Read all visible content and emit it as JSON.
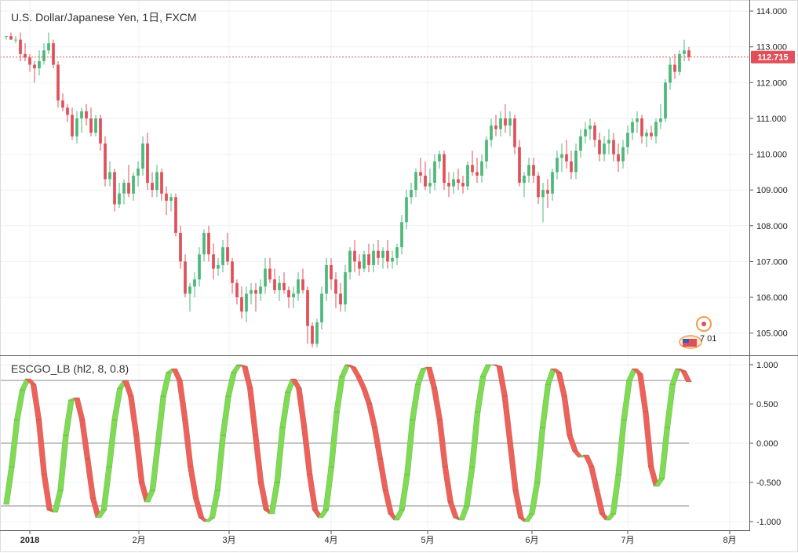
{
  "chart_data": [
    {
      "type": "candlestick",
      "title": "U.S. Dollar/Japanese Yen, 1日, FXCM",
      "ylim": [
        104.4,
        114.2
      ],
      "yticks": [
        "114.000",
        "113.000",
        "112.000",
        "111.000",
        "110.000",
        "109.000",
        "108.000",
        "107.000",
        "106.000",
        "105.000"
      ],
      "last_price": "112.715",
      "up_color": "#4db87a",
      "down_color": "#e0505a",
      "x_tick_labels": [
        "2018",
        "2月",
        "3月",
        "4月",
        "5月",
        "6月",
        "7月",
        "8月"
      ],
      "event_marker_label": "7 01",
      "candles": [
        [
          113.3,
          113.3,
          113.2,
          113.3
        ],
        [
          113.3,
          113.4,
          113.2,
          113.2
        ],
        [
          113.2,
          113.3,
          113.1,
          113.2
        ],
        [
          113.2,
          113.4,
          112.6,
          112.8
        ],
        [
          112.8,
          113.1,
          112.6,
          112.7
        ],
        [
          112.7,
          112.8,
          112.3,
          112.5
        ],
        [
          112.5,
          112.6,
          112.0,
          112.4
        ],
        [
          112.4,
          112.9,
          112.2,
          112.6
        ],
        [
          112.6,
          113.1,
          112.5,
          112.9
        ],
        [
          112.9,
          113.4,
          112.8,
          113.1
        ],
        [
          113.1,
          113.2,
          112.4,
          112.5
        ],
        [
          112.5,
          112.6,
          111.3,
          111.5
        ],
        [
          111.5,
          111.7,
          111.2,
          111.3
        ],
        [
          111.3,
          111.4,
          110.9,
          111.1
        ],
        [
          111.1,
          111.3,
          110.4,
          110.5
        ],
        [
          110.5,
          111.2,
          110.3,
          111.0
        ],
        [
          111.0,
          111.3,
          110.6,
          111.2
        ],
        [
          111.2,
          111.4,
          110.8,
          111.0
        ],
        [
          111.0,
          111.3,
          110.5,
          110.6
        ],
        [
          110.6,
          111.1,
          110.5,
          111.0
        ],
        [
          111.0,
          111.1,
          110.1,
          110.3
        ],
        [
          110.3,
          110.5,
          109.1,
          109.3
        ],
        [
          109.3,
          109.8,
          109.1,
          109.5
        ],
        [
          109.5,
          109.6,
          108.4,
          108.6
        ],
        [
          108.6,
          109.2,
          108.5,
          108.9
        ],
        [
          108.9,
          109.3,
          108.6,
          109.2
        ],
        [
          109.2,
          109.7,
          108.8,
          108.9
        ],
        [
          108.9,
          109.5,
          108.7,
          109.4
        ],
        [
          109.4,
          109.8,
          109.1,
          109.6
        ],
        [
          109.6,
          110.5,
          109.4,
          110.3
        ],
        [
          110.3,
          110.6,
          109.0,
          109.2
        ],
        [
          109.2,
          109.5,
          108.8,
          109.0
        ],
        [
          109.0,
          109.7,
          108.8,
          109.5
        ],
        [
          109.5,
          109.6,
          108.7,
          108.9
        ],
        [
          108.9,
          109.1,
          108.3,
          108.7
        ],
        [
          108.7,
          108.9,
          108.4,
          108.8
        ],
        [
          108.8,
          108.9,
          107.7,
          107.8
        ],
        [
          107.8,
          108.0,
          106.8,
          107.0
        ],
        [
          107.0,
          107.2,
          106.0,
          106.1
        ],
        [
          106.1,
          106.4,
          105.6,
          106.3
        ],
        [
          106.3,
          106.7,
          106.0,
          106.5
        ],
        [
          106.5,
          107.4,
          106.3,
          107.2
        ],
        [
          107.2,
          107.9,
          107.0,
          107.8
        ],
        [
          107.8,
          108.0,
          107.0,
          107.2
        ],
        [
          107.2,
          107.5,
          106.5,
          106.8
        ],
        [
          106.8,
          107.1,
          106.6,
          106.9
        ],
        [
          106.9,
          107.6,
          106.7,
          107.4
        ],
        [
          107.4,
          107.8,
          106.9,
          107.0
        ],
        [
          107.0,
          107.1,
          106.1,
          106.4
        ],
        [
          106.4,
          106.5,
          105.8,
          106.0
        ],
        [
          106.0,
          106.3,
          105.4,
          105.6
        ],
        [
          105.6,
          106.3,
          105.3,
          106.1
        ],
        [
          106.1,
          106.4,
          105.8,
          106.2
        ],
        [
          106.2,
          106.4,
          105.6,
          106.1
        ],
        [
          106.1,
          106.5,
          105.9,
          106.3
        ],
        [
          106.3,
          107.1,
          106.1,
          106.8
        ],
        [
          106.8,
          107.1,
          106.4,
          106.5
        ],
        [
          106.5,
          106.8,
          106.1,
          106.2
        ],
        [
          106.2,
          106.6,
          105.9,
          106.4
        ],
        [
          106.4,
          106.7,
          106.1,
          106.2
        ],
        [
          106.2,
          106.3,
          105.7,
          106.0
        ],
        [
          106.0,
          106.3,
          105.7,
          106.1
        ],
        [
          106.1,
          106.7,
          105.9,
          106.5
        ],
        [
          106.5,
          106.8,
          106.1,
          106.2
        ],
        [
          106.2,
          106.3,
          104.7,
          105.2
        ],
        [
          105.2,
          105.3,
          104.6,
          104.7
        ],
        [
          104.7,
          105.4,
          104.6,
          105.3
        ],
        [
          105.3,
          106.3,
          105.1,
          106.1
        ],
        [
          106.1,
          107.1,
          105.9,
          106.9
        ],
        [
          106.9,
          107.1,
          106.2,
          106.5
        ],
        [
          106.5,
          106.7,
          105.7,
          106.1
        ],
        [
          106.1,
          106.4,
          105.6,
          105.8
        ],
        [
          105.8,
          106.9,
          105.6,
          106.7
        ],
        [
          106.7,
          107.4,
          106.5,
          107.3
        ],
        [
          107.3,
          107.6,
          106.7,
          107.0
        ],
        [
          107.0,
          107.2,
          106.6,
          106.8
        ],
        [
          106.8,
          107.3,
          106.7,
          107.2
        ],
        [
          107.2,
          107.5,
          106.7,
          106.9
        ],
        [
          106.9,
          107.5,
          106.7,
          107.3
        ],
        [
          107.3,
          107.6,
          106.9,
          107.1
        ],
        [
          107.1,
          107.4,
          106.8,
          107.3
        ],
        [
          107.3,
          107.6,
          106.8,
          107.0
        ],
        [
          107.0,
          107.3,
          106.8,
          107.1
        ],
        [
          107.1,
          107.5,
          106.9,
          107.4
        ],
        [
          107.4,
          108.3,
          107.2,
          108.1
        ],
        [
          108.1,
          109.0,
          107.9,
          108.8
        ],
        [
          108.8,
          109.2,
          108.6,
          109.0
        ],
        [
          109.0,
          109.6,
          108.8,
          109.5
        ],
        [
          109.5,
          109.9,
          109.2,
          109.4
        ],
        [
          109.4,
          109.8,
          109.0,
          109.1
        ],
        [
          109.1,
          109.6,
          108.9,
          109.2
        ],
        [
          109.2,
          110.0,
          109.0,
          109.8
        ],
        [
          109.8,
          110.1,
          109.6,
          110.0
        ],
        [
          110.0,
          110.1,
          109.0,
          109.2
        ],
        [
          109.2,
          109.5,
          108.8,
          109.1
        ],
        [
          109.1,
          109.5,
          108.9,
          109.3
        ],
        [
          109.3,
          109.6,
          109.0,
          109.2
        ],
        [
          109.2,
          109.4,
          108.9,
          109.1
        ],
        [
          109.1,
          109.8,
          109.0,
          109.7
        ],
        [
          109.7,
          110.1,
          109.4,
          109.5
        ],
        [
          109.5,
          109.9,
          109.2,
          109.4
        ],
        [
          109.4,
          110.0,
          109.2,
          109.8
        ],
        [
          109.8,
          110.5,
          109.6,
          110.4
        ],
        [
          110.4,
          111.0,
          110.2,
          110.8
        ],
        [
          110.8,
          111.1,
          110.5,
          110.7
        ],
        [
          110.7,
          111.2,
          110.5,
          111.0
        ],
        [
          111.0,
          111.4,
          110.6,
          110.8
        ],
        [
          110.8,
          111.2,
          110.5,
          111.0
        ],
        [
          111.0,
          111.1,
          110.0,
          110.2
        ],
        [
          110.2,
          110.4,
          109.1,
          109.2
        ],
        [
          109.2,
          109.5,
          108.8,
          109.4
        ],
        [
          109.4,
          109.9,
          109.2,
          109.7
        ],
        [
          109.7,
          109.9,
          109.2,
          109.4
        ],
        [
          109.4,
          109.5,
          108.6,
          108.8
        ],
        [
          108.8,
          109.2,
          108.1,
          109.0
        ],
        [
          109.0,
          109.3,
          108.5,
          108.9
        ],
        [
          108.9,
          109.6,
          108.7,
          109.5
        ],
        [
          109.5,
          110.1,
          109.3,
          109.9
        ],
        [
          109.9,
          110.3,
          109.5,
          110.0
        ],
        [
          110.0,
          110.4,
          109.6,
          109.8
        ],
        [
          109.8,
          110.1,
          109.3,
          109.5
        ],
        [
          109.5,
          110.3,
          109.3,
          110.1
        ],
        [
          110.1,
          110.7,
          109.9,
          110.5
        ],
        [
          110.5,
          110.9,
          110.3,
          110.7
        ],
        [
          110.7,
          111.0,
          110.4,
          110.8
        ],
        [
          110.8,
          110.9,
          110.2,
          110.4
        ],
        [
          110.4,
          110.6,
          109.8,
          110.0
        ],
        [
          110.0,
          110.5,
          109.8,
          110.3
        ],
        [
          110.3,
          110.7,
          110.0,
          110.4
        ],
        [
          110.4,
          110.6,
          109.8,
          110.0
        ],
        [
          110.0,
          110.3,
          109.5,
          109.8
        ],
        [
          109.8,
          110.4,
          109.6,
          110.2
        ],
        [
          110.2,
          110.8,
          110.0,
          110.6
        ],
        [
          110.6,
          111.0,
          110.4,
          110.9
        ],
        [
          110.9,
          111.2,
          110.6,
          111.0
        ],
        [
          111.0,
          111.1,
          110.3,
          110.5
        ],
        [
          110.5,
          110.7,
          110.2,
          110.6
        ],
        [
          110.6,
          110.8,
          110.4,
          110.5
        ],
        [
          110.5,
          111.0,
          110.3,
          110.9
        ],
        [
          110.9,
          111.4,
          110.7,
          111.0
        ],
        [
          111.0,
          112.1,
          110.9,
          112.0
        ],
        [
          112.0,
          112.7,
          111.8,
          112.5
        ],
        [
          112.5,
          112.8,
          112.1,
          112.3
        ],
        [
          112.3,
          112.9,
          112.2,
          112.8
        ],
        [
          112.8,
          113.2,
          112.6,
          112.9
        ],
        [
          112.9,
          113.0,
          112.6,
          112.715
        ]
      ]
    },
    {
      "type": "line",
      "title": "ESCGO_LB (hl2, 8, 0.8)",
      "ylim": [
        -1.1,
        1.1
      ],
      "yticks": [
        "1.000",
        "0.500",
        "0.000",
        "-0.500",
        "-1.000"
      ],
      "levels": [
        0.8,
        0.0,
        -0.8
      ],
      "series": [
        {
          "rising_color": "#7ddc52",
          "falling_color": "#f0605a"
        }
      ],
      "values": [
        -0.78,
        -0.3,
        0.3,
        0.68,
        0.82,
        0.75,
        0.3,
        -0.4,
        -0.85,
        -0.88,
        -0.6,
        0.1,
        0.55,
        0.58,
        0.3,
        -0.2,
        -0.7,
        -0.95,
        -0.85,
        -0.3,
        0.3,
        0.7,
        0.8,
        0.6,
        0.1,
        -0.5,
        -0.75,
        -0.6,
        0.0,
        0.6,
        0.9,
        0.95,
        0.8,
        0.3,
        -0.3,
        -0.7,
        -0.95,
        -1.0,
        -0.95,
        -0.6,
        0.1,
        0.6,
        0.9,
        1.0,
        0.98,
        0.7,
        0.1,
        -0.5,
        -0.85,
        -0.9,
        -0.5,
        0.2,
        0.65,
        0.82,
        0.7,
        0.2,
        -0.4,
        -0.85,
        -0.95,
        -0.85,
        -0.3,
        0.4,
        0.85,
        1.0,
        0.97,
        0.85,
        0.7,
        0.5,
        0.2,
        -0.2,
        -0.6,
        -0.9,
        -0.98,
        -0.85,
        -0.4,
        0.3,
        0.75,
        0.95,
        0.97,
        0.7,
        0.3,
        -0.3,
        -0.75,
        -0.95,
        -0.98,
        -0.8,
        -0.3,
        0.4,
        0.85,
        1.0,
        1.0,
        0.98,
        0.6,
        0.0,
        -0.6,
        -0.95,
        -1.0,
        -0.9,
        -0.5,
        0.2,
        0.75,
        0.95,
        0.9,
        0.6,
        0.1,
        -0.1,
        -0.18,
        -0.15,
        -0.3,
        -0.6,
        -0.9,
        -0.98,
        -0.9,
        -0.4,
        0.3,
        0.8,
        0.95,
        0.88,
        0.4,
        -0.3,
        -0.55,
        -0.45,
        0.2,
        0.75,
        0.95,
        0.92,
        0.78
      ]
    }
  ]
}
